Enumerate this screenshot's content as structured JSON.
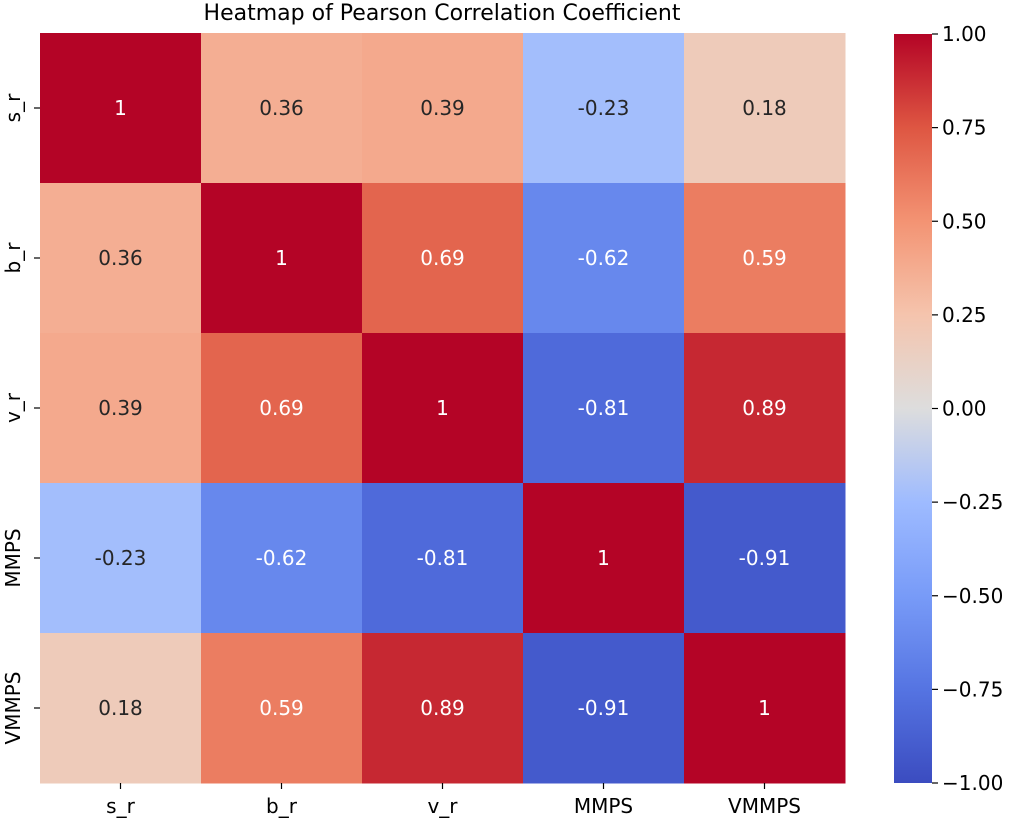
{
  "chart_data": {
    "type": "heatmap",
    "title": "Heatmap of Pearson Correlation Coefficient",
    "row_labels": [
      "s_r",
      "b_r",
      "v_r",
      "MMPS",
      "VMMPS"
    ],
    "col_labels": [
      "s_r",
      "b_r",
      "v_r",
      "MMPS",
      "VMMPS"
    ],
    "matrix": [
      [
        1,
        0.36,
        0.39,
        -0.23,
        0.18
      ],
      [
        0.36,
        1,
        0.69,
        -0.62,
        0.59
      ],
      [
        0.39,
        0.69,
        1,
        -0.81,
        0.89
      ],
      [
        -0.23,
        -0.62,
        -0.81,
        1,
        -0.91
      ],
      [
        0.18,
        0.59,
        0.89,
        -0.91,
        1
      ]
    ],
    "cell_labels": [
      [
        "1",
        "0.36",
        "0.39",
        "-0.23",
        "0.18"
      ],
      [
        "0.36",
        "1",
        "0.69",
        "-0.62",
        "0.59"
      ],
      [
        "0.39",
        "0.69",
        "1",
        "-0.81",
        "0.89"
      ],
      [
        "-0.23",
        "-0.62",
        "-0.81",
        "1",
        "-0.91"
      ],
      [
        "0.18",
        "0.59",
        "0.89",
        "-0.91",
        "1"
      ]
    ],
    "colormap": "coolwarm",
    "value_range": [
      -1,
      1
    ],
    "colorbar_ticks": [
      1.0,
      0.75,
      0.5,
      0.25,
      0.0,
      -0.25,
      -0.5,
      -0.75,
      -1.0
    ],
    "colorbar_tick_labels": [
      "1.00",
      "0.75",
      "0.50",
      "0.25",
      "0.00",
      "−0.25",
      "−0.50",
      "−0.75",
      "−1.00"
    ],
    "colorbar_placement": "right",
    "grid": false
  }
}
